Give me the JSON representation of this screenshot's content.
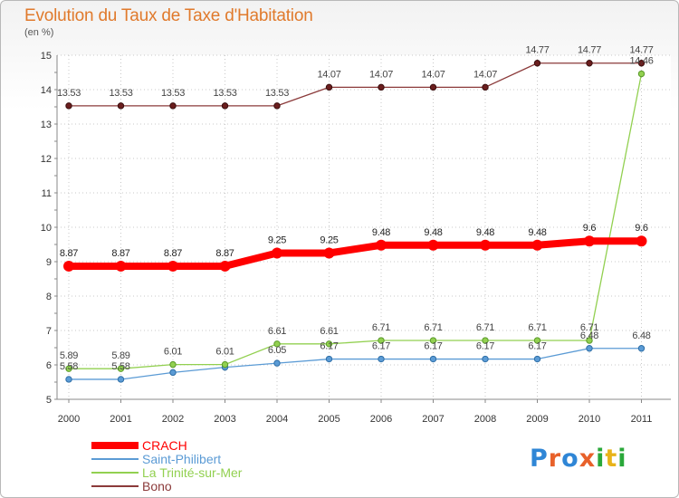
{
  "title": "Evolution du Taux de Taxe d'Habitation",
  "unit": "(en %)",
  "logo": {
    "letters": [
      "P",
      "r",
      "o",
      "x",
      "i",
      "t",
      "i"
    ],
    "colors": [
      "#2f86d6",
      "#e8612a",
      "#2f86d6",
      "#e8612a",
      "#2aa83a",
      "#e8b31a",
      "#2aa83a"
    ]
  },
  "chart_data": {
    "type": "line",
    "title": "Evolution du Taux de Taxe d'Habitation",
    "ylabel": "(en %)",
    "xlabel": "",
    "ylim": [
      5,
      15
    ],
    "yticks": [
      "5",
      "6",
      "7",
      "8",
      "9",
      "10",
      "11",
      "12",
      "13",
      "14",
      "15"
    ],
    "categories": [
      "2000",
      "2001",
      "2002",
      "2003",
      "2004",
      "2005",
      "2006",
      "2007",
      "2008",
      "2009",
      "2010",
      "2011"
    ],
    "grid": true,
    "legend_position": "bottom-left",
    "series": [
      {
        "name": "CRACH",
        "color": "#ff0000",
        "values": [
          8.87,
          8.87,
          8.87,
          8.87,
          9.25,
          9.25,
          9.48,
          9.48,
          9.48,
          9.48,
          9.6,
          9.6
        ],
        "labels": [
          "8.87",
          "8.87",
          "8.87",
          "8.87",
          "9.25",
          "9.25",
          "9.48",
          "9.48",
          "9.48",
          "9.48",
          "9.6",
          "9.6"
        ]
      },
      {
        "name": "Saint-Philibert",
        "color": "#5b9bd5",
        "values": [
          5.58,
          5.58,
          5.78,
          5.93,
          6.05,
          6.17,
          6.17,
          6.17,
          6.17,
          6.17,
          6.48,
          6.48
        ],
        "labels": [
          "5.58",
          "5.58",
          "",
          "",
          "6.05",
          "6.17",
          "6.17",
          "6.17",
          "6.17",
          "6.17",
          "6.48",
          "6.48"
        ]
      },
      {
        "name": "La Trinité-sur-Mer",
        "color": "#92d050",
        "values": [
          5.89,
          5.89,
          6.01,
          6.01,
          6.61,
          6.61,
          6.71,
          6.71,
          6.71,
          6.71,
          6.71,
          14.46
        ],
        "labels": [
          "5.89",
          "5.89",
          "6.01",
          "6.01",
          "6.61",
          "6.61",
          "6.71",
          "6.71",
          "6.71",
          "6.71",
          "6.71",
          "14.46"
        ]
      },
      {
        "name": "Bono",
        "color": "#8b3a3a",
        "values": [
          13.53,
          13.53,
          13.53,
          13.53,
          13.53,
          14.07,
          14.07,
          14.07,
          14.07,
          14.77,
          14.77,
          14.77
        ],
        "labels": [
          "13.53",
          "13.53",
          "13.53",
          "13.53",
          "13.53",
          "14.07",
          "14.07",
          "14.07",
          "14.07",
          "14.77",
          "14.77",
          "14.77"
        ]
      }
    ]
  }
}
